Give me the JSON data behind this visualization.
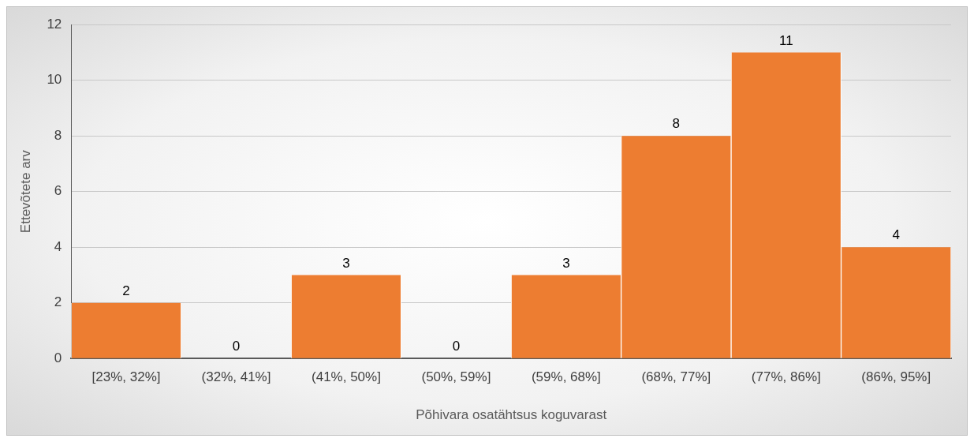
{
  "chart_data": {
    "type": "bar",
    "xlabel": "Põhivara osatähtsus koguvarast",
    "ylabel": "Ettevõtete arv",
    "categories": [
      "[23%, 32%]",
      "(32%, 41%]",
      "(41%, 50%]",
      "(50%, 59%]",
      "(59%, 68%]",
      "(68%, 77%]",
      "(77%, 86%]",
      "(86%, 95%]"
    ],
    "values": [
      2,
      0,
      3,
      0,
      3,
      8,
      11,
      4
    ],
    "color": "#ed7d31",
    "ylim": [
      0,
      12
    ],
    "yticks": [
      0,
      2,
      4,
      6,
      8,
      10,
      12
    ],
    "grid": "y",
    "data_labels": true
  }
}
